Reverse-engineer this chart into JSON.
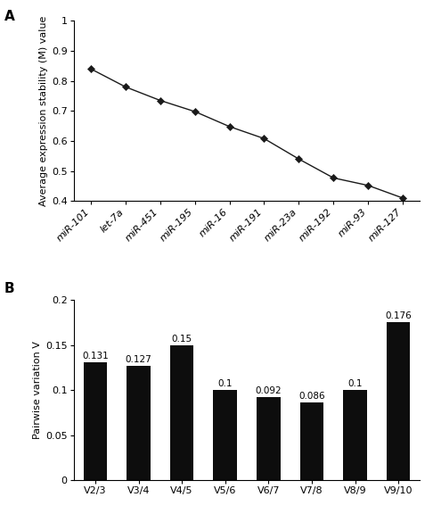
{
  "panel_a": {
    "x_labels": [
      "miR-101",
      "let-7a",
      "miR-451",
      "miR-195",
      "miR-16",
      "miR-191",
      "miR-23a",
      "miR-192",
      "miR-93",
      "miR-127"
    ],
    "y_values": [
      0.84,
      0.78,
      0.735,
      0.698,
      0.648,
      0.608,
      0.54,
      0.477,
      0.452,
      0.41
    ],
    "ylabel": "Average expression stability (M) value",
    "ylim": [
      0.4,
      1.0
    ],
    "yticks": [
      0.4,
      0.5,
      0.6,
      0.7,
      0.8,
      0.9,
      1.0
    ],
    "ytick_labels": [
      "0.4",
      "0.5",
      "0.6",
      "0.7",
      "0.8",
      "0.9",
      "1"
    ],
    "marker": "D",
    "line_color": "#1a1a1a",
    "marker_color": "#1a1a1a",
    "panel_label": "A"
  },
  "panel_b": {
    "x_labels": [
      "V2/3",
      "V3/4",
      "V4/5",
      "V5/6",
      "V6/7",
      "V7/8",
      "V8/9",
      "V9/10"
    ],
    "y_values": [
      0.131,
      0.127,
      0.15,
      0.1,
      0.092,
      0.086,
      0.1,
      0.176
    ],
    "bar_labels": [
      "0.131",
      "0.127",
      "0.15",
      "0.1",
      "0.092",
      "0.086",
      "0.1",
      "0.176"
    ],
    "ylabel": "Pairwise variation V",
    "ylim": [
      0,
      0.2
    ],
    "yticks": [
      0,
      0.05,
      0.1,
      0.15,
      0.2
    ],
    "ytick_labels": [
      "0",
      "0.05",
      "0.1",
      "0.15",
      "0.2"
    ],
    "bar_color": "#0d0d0d",
    "panel_label": "B"
  },
  "background_color": "#ffffff",
  "font_family": "Arial",
  "font_size": 8,
  "ylabel_font_size": 8,
  "panel_label_font_size": 11
}
